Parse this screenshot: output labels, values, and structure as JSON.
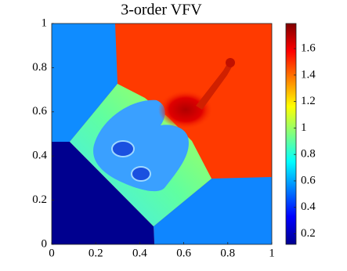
{
  "chart_data": {
    "type": "heatmap",
    "title": "3-order VFV",
    "xlim": [
      0,
      1
    ],
    "ylim": [
      0,
      1
    ],
    "xticks": [
      0,
      0.2,
      0.4,
      0.6,
      0.8,
      1
    ],
    "yticks": [
      0,
      0.2,
      0.4,
      0.6,
      0.8,
      1
    ],
    "colorbar": {
      "colormap": "jet",
      "clim": [
        0.12,
        1.79
      ],
      "ticks": [
        0.2,
        0.4,
        0.6,
        0.8,
        1,
        1.2,
        1.4,
        1.6
      ]
    }
  }
}
